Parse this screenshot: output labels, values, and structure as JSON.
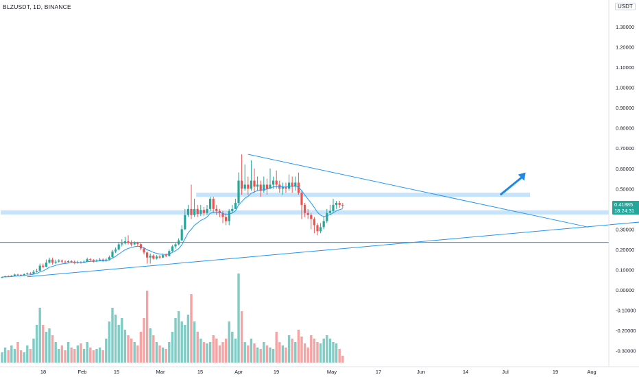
{
  "header": {
    "symbol_line": "BLZUSDT, 1D, BINANCE",
    "unit": "USDT"
  },
  "price_tag": {
    "price": "0.41885",
    "countdown": "18:24:31"
  },
  "colors": {
    "up": "#26a69a",
    "down": "#ef5350",
    "vol_up": "#80cbc4",
    "vol_down": "#f5a3a3",
    "line": "#2196f3",
    "zone": "#bbdefb"
  },
  "chart_data": {
    "type": "candlestick",
    "y_axis": {
      "ticks": [
        "1.30000",
        "1.20000",
        "1.10000",
        "1.00000",
        "0.90000",
        "0.80000",
        "0.70000",
        "0.60000",
        "0.50000",
        "0.40000",
        "0.30000",
        "0.20000",
        "0.10000",
        "0.00000",
        "-0.10000",
        "-0.20000",
        "-0.30000"
      ],
      "ylim": [
        -0.34,
        1.4
      ]
    },
    "x_axis": {
      "ticks": [
        "18",
        "Feb",
        "15",
        "Mar",
        "15",
        "Apr",
        "19",
        "May",
        "17",
        "Jun",
        "14",
        "Jul",
        "19",
        "Aug"
      ]
    },
    "candles": [
      [
        0.06,
        0.064,
        0.066,
        0.058
      ],
      [
        0.064,
        0.068,
        0.07,
        0.062
      ],
      [
        0.068,
        0.066,
        0.072,
        0.064
      ],
      [
        0.066,
        0.07,
        0.073,
        0.064
      ],
      [
        0.07,
        0.076,
        0.08,
        0.068
      ],
      [
        0.076,
        0.074,
        0.08,
        0.07
      ],
      [
        0.074,
        0.072,
        0.078,
        0.068
      ],
      [
        0.072,
        0.078,
        0.082,
        0.07
      ],
      [
        0.078,
        0.082,
        0.086,
        0.075
      ],
      [
        0.082,
        0.08,
        0.088,
        0.076
      ],
      [
        0.08,
        0.09,
        0.098,
        0.078
      ],
      [
        0.09,
        0.095,
        0.105,
        0.086
      ],
      [
        0.095,
        0.12,
        0.13,
        0.092
      ],
      [
        0.12,
        0.115,
        0.13,
        0.108
      ],
      [
        0.115,
        0.135,
        0.15,
        0.112
      ],
      [
        0.135,
        0.15,
        0.16,
        0.13
      ],
      [
        0.15,
        0.135,
        0.16,
        0.125
      ],
      [
        0.135,
        0.14,
        0.15,
        0.128
      ],
      [
        0.14,
        0.145,
        0.152,
        0.135
      ],
      [
        0.145,
        0.14,
        0.15,
        0.132
      ],
      [
        0.14,
        0.138,
        0.146,
        0.13
      ],
      [
        0.138,
        0.142,
        0.148,
        0.134
      ],
      [
        0.142,
        0.14,
        0.148,
        0.135
      ],
      [
        0.14,
        0.135,
        0.145,
        0.128
      ],
      [
        0.135,
        0.138,
        0.144,
        0.13
      ],
      [
        0.138,
        0.136,
        0.142,
        0.13
      ],
      [
        0.136,
        0.14,
        0.146,
        0.132
      ],
      [
        0.14,
        0.152,
        0.16,
        0.138
      ],
      [
        0.152,
        0.148,
        0.158,
        0.14
      ],
      [
        0.148,
        0.142,
        0.152,
        0.136
      ],
      [
        0.142,
        0.146,
        0.152,
        0.138
      ],
      [
        0.146,
        0.15,
        0.158,
        0.142
      ],
      [
        0.15,
        0.145,
        0.156,
        0.138
      ],
      [
        0.145,
        0.15,
        0.156,
        0.14
      ],
      [
        0.15,
        0.162,
        0.17,
        0.145
      ],
      [
        0.162,
        0.19,
        0.198,
        0.158
      ],
      [
        0.19,
        0.2,
        0.21,
        0.182
      ],
      [
        0.2,
        0.225,
        0.236,
        0.195
      ],
      [
        0.225,
        0.23,
        0.25,
        0.215
      ],
      [
        0.23,
        0.24,
        0.262,
        0.225
      ],
      [
        0.24,
        0.232,
        0.27,
        0.225
      ],
      [
        0.232,
        0.225,
        0.245,
        0.215
      ],
      [
        0.225,
        0.232,
        0.24,
        0.22
      ],
      [
        0.232,
        0.226,
        0.238,
        0.218
      ],
      [
        0.226,
        0.205,
        0.232,
        0.196
      ],
      [
        0.205,
        0.185,
        0.21,
        0.176
      ],
      [
        0.185,
        0.16,
        0.19,
        0.13
      ],
      [
        0.16,
        0.17,
        0.18,
        0.13
      ],
      [
        0.17,
        0.155,
        0.176,
        0.15
      ],
      [
        0.155,
        0.165,
        0.172,
        0.15
      ],
      [
        0.165,
        0.16,
        0.172,
        0.154
      ],
      [
        0.16,
        0.172,
        0.18,
        0.158
      ],
      [
        0.172,
        0.168,
        0.18,
        0.162
      ],
      [
        0.168,
        0.192,
        0.2,
        0.165
      ],
      [
        0.192,
        0.215,
        0.222,
        0.188
      ],
      [
        0.215,
        0.225,
        0.232,
        0.205
      ],
      [
        0.225,
        0.245,
        0.255,
        0.22
      ],
      [
        0.245,
        0.3,
        0.32,
        0.24
      ],
      [
        0.3,
        0.37,
        0.4,
        0.295
      ],
      [
        0.37,
        0.4,
        0.42,
        0.36
      ],
      [
        0.4,
        0.37,
        0.52,
        0.35
      ],
      [
        0.37,
        0.4,
        0.45,
        0.36
      ],
      [
        0.4,
        0.375,
        0.42,
        0.36
      ],
      [
        0.375,
        0.395,
        0.42,
        0.365
      ],
      [
        0.395,
        0.38,
        0.41,
        0.365
      ],
      [
        0.38,
        0.4,
        0.42,
        0.37
      ],
      [
        0.4,
        0.45,
        0.46,
        0.39
      ],
      [
        0.45,
        0.4,
        0.46,
        0.38
      ],
      [
        0.4,
        0.39,
        0.42,
        0.37
      ],
      [
        0.39,
        0.38,
        0.4,
        0.36
      ],
      [
        0.38,
        0.36,
        0.39,
        0.33
      ],
      [
        0.36,
        0.34,
        0.38,
        0.32
      ],
      [
        0.34,
        0.39,
        0.4,
        0.32
      ],
      [
        0.39,
        0.4,
        0.42,
        0.38
      ],
      [
        0.4,
        0.43,
        0.45,
        0.4
      ],
      [
        0.43,
        0.54,
        0.58,
        0.42
      ],
      [
        0.54,
        0.5,
        0.67,
        0.47
      ],
      [
        0.5,
        0.52,
        0.62,
        0.49
      ],
      [
        0.52,
        0.5,
        0.56,
        0.47
      ],
      [
        0.5,
        0.54,
        0.64,
        0.49
      ],
      [
        0.54,
        0.51,
        0.6,
        0.48
      ],
      [
        0.51,
        0.52,
        0.56,
        0.49
      ],
      [
        0.52,
        0.49,
        0.54,
        0.46
      ],
      [
        0.49,
        0.52,
        0.56,
        0.48
      ],
      [
        0.52,
        0.5,
        0.55,
        0.47
      ],
      [
        0.5,
        0.52,
        0.6,
        0.5
      ],
      [
        0.52,
        0.54,
        0.56,
        0.5
      ],
      [
        0.54,
        0.52,
        0.59,
        0.5
      ],
      [
        0.52,
        0.5,
        0.54,
        0.48
      ],
      [
        0.5,
        0.51,
        0.53,
        0.47
      ],
      [
        0.51,
        0.5,
        0.53,
        0.48
      ],
      [
        0.5,
        0.53,
        0.57,
        0.49
      ],
      [
        0.53,
        0.51,
        0.56,
        0.48
      ],
      [
        0.51,
        0.53,
        0.56,
        0.49
      ],
      [
        0.53,
        0.48,
        0.58,
        0.47
      ],
      [
        0.48,
        0.42,
        0.49,
        0.35
      ],
      [
        0.42,
        0.38,
        0.43,
        0.36
      ],
      [
        0.38,
        0.37,
        0.4,
        0.35
      ],
      [
        0.37,
        0.35,
        0.38,
        0.3
      ],
      [
        0.35,
        0.32,
        0.36,
        0.28
      ],
      [
        0.32,
        0.29,
        0.33,
        0.27
      ],
      [
        0.29,
        0.31,
        0.33,
        0.28
      ],
      [
        0.31,
        0.34,
        0.36,
        0.3
      ],
      [
        0.34,
        0.38,
        0.4,
        0.33
      ],
      [
        0.38,
        0.39,
        0.42,
        0.37
      ],
      [
        0.39,
        0.42,
        0.45,
        0.38
      ],
      [
        0.42,
        0.43,
        0.44,
        0.4
      ],
      [
        0.43,
        0.42,
        0.44,
        0.405
      ],
      [
        0.42,
        0.41885,
        0.43,
        0.405
      ]
    ],
    "volume_relative": [
      0.15,
      0.22,
      0.18,
      0.25,
      0.2,
      0.3,
      0.18,
      0.15,
      0.25,
      0.2,
      0.35,
      0.55,
      0.8,
      0.55,
      0.45,
      0.5,
      0.4,
      0.3,
      0.2,
      0.25,
      0.18,
      0.3,
      0.22,
      0.2,
      0.25,
      0.28,
      0.2,
      0.3,
      0.22,
      0.18,
      0.2,
      0.22,
      0.18,
      0.35,
      0.6,
      0.8,
      0.7,
      0.55,
      0.65,
      0.48,
      0.4,
      0.35,
      0.3,
      0.25,
      0.45,
      0.65,
      1.05,
      0.5,
      0.4,
      0.3,
      0.25,
      0.22,
      0.2,
      0.3,
      0.45,
      0.65,
      0.75,
      0.6,
      0.55,
      0.7,
      1.0,
      0.6,
      0.45,
      0.35,
      0.3,
      0.28,
      0.3,
      0.4,
      0.35,
      0.25,
      0.3,
      0.35,
      0.6,
      0.45,
      0.35,
      1.3,
      0.75,
      0.3,
      0.25,
      0.35,
      0.28,
      0.22,
      0.2,
      0.3,
      0.25,
      0.22,
      0.2,
      0.45,
      0.3,
      0.25,
      0.22,
      0.4,
      0.35,
      0.3,
      0.48,
      0.38,
      0.28,
      0.22,
      0.4,
      0.35,
      0.3,
      0.28,
      0.35,
      0.4,
      0.35,
      0.3,
      0.28,
      0.2,
      0.1
    ],
    "ema_line": "exponential moving average of close, period 9",
    "horizontal_zones": [
      {
        "y": 0.47,
        "start_index": 62,
        "end": "0.7w"
      },
      {
        "y": 0.383,
        "start_index": 0,
        "end": "full"
      },
      {
        "y": 0.235,
        "start_index": 0,
        "end": "full",
        "line": true
      }
    ],
    "trendlines": [
      {
        "from": [
          78,
          0.67
        ],
        "to": [
          186,
          0.31
        ]
      },
      {
        "from": [
          8,
          0.065
        ],
        "to": [
          202,
          0.335
        ]
      }
    ],
    "arrow": {
      "from": [
        158,
        0.47
      ],
      "to": [
        166,
        0.58
      ]
    }
  }
}
